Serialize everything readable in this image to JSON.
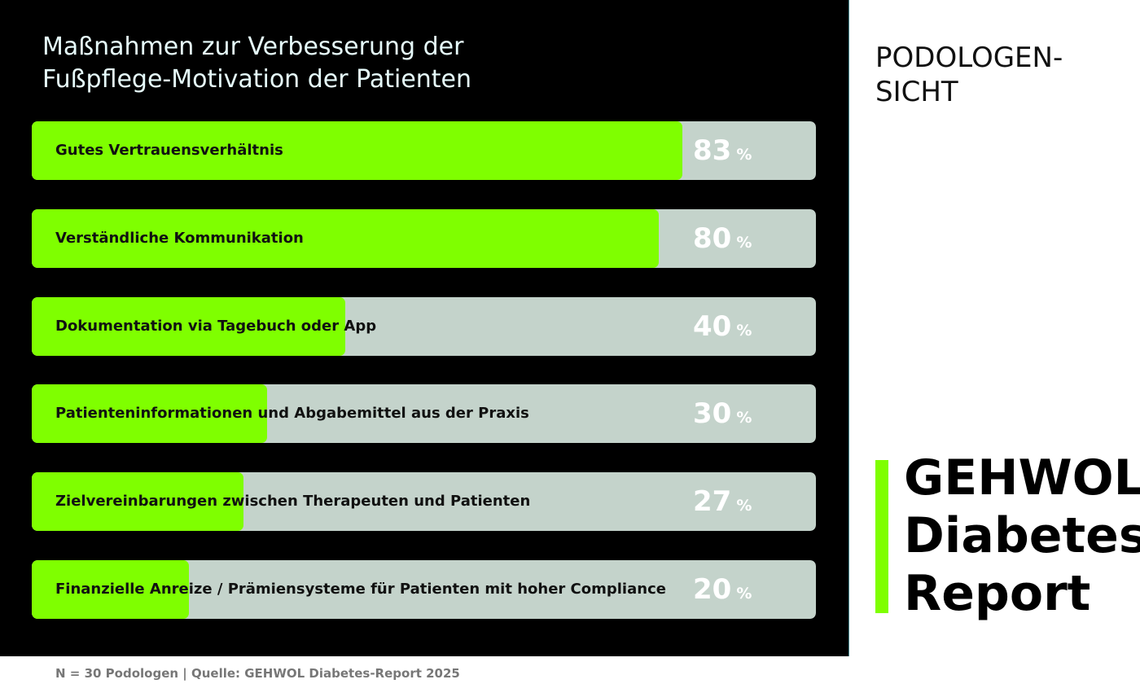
{
  "chart_data": {
    "type": "bar",
    "orientation": "horizontal",
    "title": "Maßnahmen zur Verbesserung der\nFußpflege-Motivation der Patienten",
    "categories": [
      "Gutes Vertrauensverhältnis",
      "Verständliche Kommunikation",
      "Dokumentation via Tagebuch oder App",
      "Patienteninformationen und Abgabemittel aus der Praxis",
      "Zielvereinbarungen zwischen Therapeuten und Patienten",
      "Finanzielle Anreize / Prämiensysteme für Patienten mit hoher Compliance"
    ],
    "values": [
      83,
      80,
      40,
      30,
      27,
      20
    ],
    "unit": "%",
    "xlim": [
      0,
      100
    ],
    "grid": false,
    "colors": {
      "bar": "#7fff00",
      "track": "#c4d3cb",
      "background": "#000000",
      "value_text": "#ffffff"
    }
  },
  "side_label": "PODOLOGEN-\nSICHT",
  "logo": {
    "text": "GEHWOL\nDiabetes\nReport",
    "accent": "#7fff00"
  },
  "footer": "N = 30 Podologen | Quelle: GEHWOL Diabetes-Report 2025"
}
